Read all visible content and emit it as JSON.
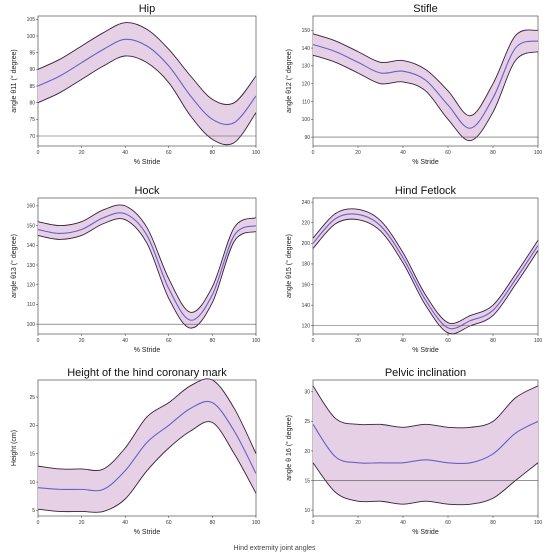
{
  "caption": "Hind extremity joint angles",
  "colors": {
    "band": "#e6d0e6",
    "bandEdge": "#3a1f3a",
    "mean": "#6a5fc8",
    "ref": "#555555",
    "axis": "#333333"
  },
  "chart_data": [
    {
      "type": "area",
      "title": "Hip",
      "xlabel": "% Stride",
      "ylabel": "angle θ11 (° degree)",
      "xlim": [
        0,
        100
      ],
      "ylim": [
        67,
        106
      ],
      "xticks": [
        0,
        20,
        40,
        60,
        80,
        100
      ],
      "yticks": [
        70,
        75,
        80,
        85,
        90,
        95,
        100,
        105
      ],
      "reference_y": 70,
      "x": [
        0,
        10,
        20,
        30,
        40,
        50,
        60,
        70,
        80,
        90,
        100
      ],
      "mean": [
        85,
        88,
        92,
        96,
        99,
        97,
        91,
        82,
        75,
        74,
        82
      ],
      "lower": [
        80,
        83,
        87,
        91,
        94,
        92,
        86,
        76,
        69,
        68,
        77
      ],
      "upper": [
        90,
        93,
        97,
        101,
        104,
        102,
        96,
        88,
        81,
        80,
        88
      ]
    },
    {
      "type": "area",
      "title": "Stifle",
      "xlabel": "% Stride",
      "ylabel": "angle θ12 (° degree)",
      "xlim": [
        0,
        100
      ],
      "ylim": [
        85,
        158
      ],
      "xticks": [
        0,
        20,
        40,
        60,
        80,
        100
      ],
      "yticks": [
        90,
        100,
        110,
        120,
        130,
        140,
        150
      ],
      "reference_y": 90,
      "x": [
        0,
        10,
        20,
        30,
        40,
        50,
        60,
        70,
        80,
        90,
        100
      ],
      "mean": [
        142,
        138,
        132,
        126,
        127,
        122,
        108,
        95,
        112,
        140,
        144
      ],
      "lower": [
        136,
        132,
        126,
        120,
        121,
        116,
        100,
        88,
        104,
        133,
        138
      ],
      "upper": [
        148,
        144,
        138,
        132,
        133,
        128,
        116,
        102,
        120,
        147,
        150
      ]
    },
    {
      "type": "area",
      "title": "Hock",
      "xlabel": "% Stride",
      "ylabel": "angle θ13 (° degree)",
      "xlim": [
        0,
        100
      ],
      "ylim": [
        95,
        164
      ],
      "xticks": [
        0,
        20,
        40,
        60,
        80,
        100
      ],
      "yticks": [
        100,
        110,
        120,
        130,
        140,
        150,
        160
      ],
      "reference_y": 100,
      "x": [
        0,
        10,
        20,
        30,
        40,
        50,
        60,
        70,
        80,
        90,
        100
      ],
      "mean": [
        148,
        146,
        148,
        154,
        156,
        145,
        118,
        102,
        115,
        145,
        150
      ],
      "lower": [
        145,
        143,
        145,
        151,
        153,
        141,
        113,
        98,
        111,
        142,
        147
      ],
      "upper": [
        152,
        150,
        152,
        158,
        160,
        149,
        123,
        106,
        119,
        149,
        154
      ]
    },
    {
      "type": "area",
      "title": "Hind Fetlock",
      "xlabel": "% Stride",
      "ylabel": "angle θ15 (° degree)",
      "xlim": [
        0,
        100
      ],
      "ylim": [
        112,
        244
      ],
      "xticks": [
        0,
        20,
        40,
        60,
        80,
        100
      ],
      "yticks": [
        120,
        140,
        160,
        180,
        200,
        220,
        240
      ],
      "reference_y": 120,
      "x": [
        0,
        10,
        20,
        30,
        40,
        50,
        60,
        70,
        80,
        90,
        100
      ],
      "mean": [
        200,
        224,
        228,
        217,
        186,
        145,
        118,
        125,
        135,
        165,
        198
      ],
      "lower": [
        195,
        219,
        223,
        212,
        181,
        140,
        113,
        120,
        130,
        160,
        193
      ],
      "upper": [
        205,
        229,
        233,
        222,
        191,
        150,
        123,
        130,
        140,
        170,
        203
      ]
    },
    {
      "type": "area",
      "title": "Height of the hind coronary mark",
      "xlabel": "% Stride",
      "ylabel": "Height (cm)",
      "xlim": [
        0,
        100
      ],
      "ylim": [
        4,
        28
      ],
      "xticks": [
        0,
        20,
        40,
        60,
        80,
        100
      ],
      "yticks": [
        5,
        10,
        15,
        20,
        25
      ],
      "reference_y": null,
      "x": [
        0,
        10,
        20,
        30,
        40,
        50,
        60,
        70,
        80,
        90,
        100
      ],
      "mean": [
        9,
        8.7,
        8.7,
        8.7,
        12,
        17,
        20,
        23,
        24,
        19,
        11.5
      ],
      "lower": [
        5.2,
        4.8,
        4.8,
        4.8,
        7,
        12,
        16,
        19,
        20.5,
        15,
        8
      ],
      "upper": [
        12.8,
        12.3,
        12.3,
        12.3,
        16,
        21.5,
        24,
        27,
        28,
        23,
        15
      ]
    },
    {
      "type": "area",
      "title": "Pelvic inclination",
      "xlabel": "% Stride",
      "ylabel": "angle θ 16 (° degree)",
      "xlim": [
        0,
        100
      ],
      "ylim": [
        9,
        32
      ],
      "xticks": [
        0,
        20,
        40,
        60,
        80,
        100
      ],
      "yticks": [
        10,
        15,
        20,
        25,
        30
      ],
      "reference_y": 15,
      "x": [
        0,
        10,
        20,
        30,
        40,
        50,
        60,
        70,
        80,
        90,
        100
      ],
      "mean": [
        24.5,
        19,
        18,
        18,
        18,
        18.5,
        18,
        18,
        19.5,
        23,
        25
      ],
      "lower": [
        18,
        13,
        11.5,
        11.5,
        11,
        11.5,
        11,
        11,
        12,
        15,
        18
      ],
      "upper": [
        31,
        25.5,
        24.5,
        24.5,
        24,
        24.5,
        24,
        24,
        25,
        29,
        31
      ]
    }
  ]
}
